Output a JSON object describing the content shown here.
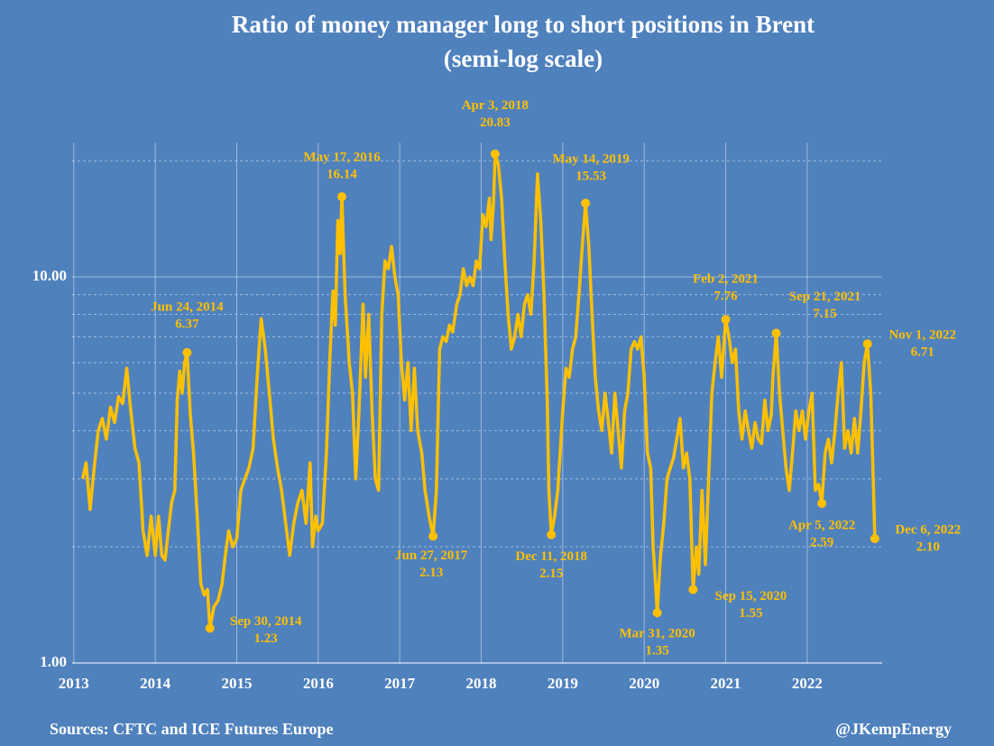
{
  "chart_data": {
    "type": "line",
    "title": "Ratio of money manager long to short positions in Brent",
    "subtitle": "(semi-log scale)",
    "source": "Sources: CFTC and ICE Futures Europe",
    "credit": "@JKempEnergy",
    "log_scale": true,
    "grid": true,
    "color": "#ffc000",
    "xlim": [
      2012.98,
      2022.92
    ],
    "xticks": [
      2013,
      2014,
      2015,
      2016,
      2017,
      2018,
      2019,
      2020,
      2021,
      2022
    ],
    "ylim": [
      1,
      22.3
    ],
    "yticks": [
      {
        "value": 1,
        "label": "1.00"
      },
      {
        "value": 10,
        "label": "10.00"
      }
    ],
    "yminor": [
      2,
      3,
      4,
      5,
      6,
      7,
      8,
      9,
      20
    ],
    "x": [
      2013.11,
      2013.15,
      2013.2,
      2013.25,
      2013.3,
      2013.35,
      2013.4,
      2013.45,
      2013.5,
      2013.55,
      2013.6,
      2013.65,
      2013.7,
      2013.75,
      2013.8,
      2013.85,
      2013.9,
      2013.95,
      2014.0,
      2014.04,
      2014.08,
      2014.12,
      2014.16,
      2014.2,
      2014.24,
      2014.27,
      2014.3,
      2014.33,
      2014.36,
      2014.39,
      2014.43,
      2014.47,
      2014.52,
      2014.56,
      2014.6,
      2014.64,
      2014.67,
      2014.72,
      2014.77,
      2014.82,
      2014.86,
      2014.9,
      2014.95,
      2015.0,
      2015.05,
      2015.1,
      2015.15,
      2015.2,
      2015.25,
      2015.3,
      2015.35,
      2015.4,
      2015.45,
      2015.5,
      2015.55,
      2015.6,
      2015.65,
      2015.7,
      2015.75,
      2015.8,
      2015.85,
      2015.9,
      2015.93,
      2015.97,
      2016.0,
      2016.05,
      2016.1,
      2016.14,
      2016.18,
      2016.21,
      2016.24,
      2016.27,
      2016.29,
      2016.33,
      2016.38,
      2016.42,
      2016.46,
      2016.5,
      2016.55,
      2016.58,
      2016.62,
      2016.66,
      2016.7,
      2016.74,
      2016.78,
      2016.82,
      2016.86,
      2016.9,
      2016.94,
      2016.98,
      2017.02,
      2017.06,
      2017.1,
      2017.14,
      2017.18,
      2017.22,
      2017.27,
      2017.31,
      2017.36,
      2017.41,
      2017.45,
      2017.49,
      2017.53,
      2017.57,
      2017.61,
      2017.65,
      2017.7,
      2017.74,
      2017.78,
      2017.82,
      2017.86,
      2017.9,
      2017.94,
      2017.98,
      2018.02,
      2018.06,
      2018.1,
      2018.12,
      2018.15,
      2018.17,
      2018.21,
      2018.25,
      2018.29,
      2018.33,
      2018.37,
      2018.41,
      2018.45,
      2018.49,
      2018.53,
      2018.57,
      2018.61,
      2018.65,
      2018.69,
      2018.73,
      2018.77,
      2018.81,
      2018.83,
      2018.86,
      2018.9,
      2018.94,
      2019.0,
      2019.04,
      2019.08,
      2019.12,
      2019.16,
      2019.2,
      2019.24,
      2019.28,
      2019.32,
      2019.36,
      2019.4,
      2019.44,
      2019.48,
      2019.52,
      2019.56,
      2019.6,
      2019.64,
      2019.68,
      2019.72,
      2019.76,
      2019.8,
      2019.84,
      2019.88,
      2019.92,
      2019.96,
      2020.0,
      2020.04,
      2020.08,
      2020.11,
      2020.14,
      2020.16,
      2020.2,
      2020.24,
      2020.28,
      2020.32,
      2020.36,
      2020.4,
      2020.44,
      2020.48,
      2020.52,
      2020.56,
      2020.6,
      2020.64,
      2020.67,
      2020.71,
      2020.75,
      2020.79,
      2020.83,
      2020.87,
      2020.91,
      2020.95,
      2021.0,
      2021.04,
      2021.08,
      2021.12,
      2021.16,
      2021.2,
      2021.24,
      2021.28,
      2021.32,
      2021.36,
      2021.4,
      2021.44,
      2021.48,
      2021.52,
      2021.56,
      2021.58,
      2021.62,
      2021.66,
      2021.7,
      2021.74,
      2021.78,
      2021.82,
      2021.86,
      2021.9,
      2021.94,
      2021.98,
      2022.02,
      2022.06,
      2022.1,
      2022.14,
      2022.18,
      2022.22,
      2022.26,
      2022.3,
      2022.34,
      2022.38,
      2022.42,
      2022.46,
      2022.5,
      2022.54,
      2022.58,
      2022.62,
      2022.66,
      2022.7,
      2022.74,
      2022.78,
      2022.81,
      2022.83
    ],
    "values": [
      3.0,
      3.3,
      2.5,
      3.2,
      4.0,
      4.3,
      3.8,
      4.6,
      4.2,
      4.9,
      4.7,
      5.8,
      4.5,
      3.6,
      3.3,
      2.2,
      1.9,
      2.4,
      1.9,
      2.4,
      1.9,
      1.85,
      2.2,
      2.6,
      2.8,
      4.8,
      5.7,
      5.0,
      6.0,
      6.37,
      4.4,
      3.5,
      2.3,
      1.6,
      1.5,
      1.55,
      1.23,
      1.4,
      1.45,
      1.6,
      1.9,
      2.2,
      2.0,
      2.1,
      2.8,
      3.0,
      3.2,
      3.6,
      5.5,
      7.8,
      6.5,
      5.0,
      3.8,
      3.2,
      2.8,
      2.3,
      1.9,
      2.3,
      2.6,
      2.8,
      2.3,
      3.3,
      2.0,
      2.4,
      2.2,
      2.3,
      3.5,
      6.0,
      9.2,
      7.5,
      14.0,
      11.5,
      16.14,
      9.0,
      6.0,
      5.0,
      3.0,
      4.5,
      8.5,
      5.5,
      8.0,
      4.5,
      3.0,
      2.8,
      8.0,
      11.0,
      10.5,
      12.0,
      10.0,
      9.0,
      6.0,
      4.8,
      6.0,
      4.0,
      5.8,
      4.0,
      3.5,
      2.8,
      2.4,
      2.13,
      2.8,
      6.5,
      7.0,
      6.8,
      7.5,
      7.2,
      8.5,
      9.0,
      10.5,
      9.5,
      10.0,
      9.5,
      11.0,
      10.5,
      14.5,
      13.5,
      16.0,
      12.5,
      15.5,
      20.83,
      19.5,
      16.0,
      11.0,
      8.0,
      6.5,
      7.0,
      8.0,
      7.0,
      8.5,
      9.0,
      8.0,
      11.0,
      18.5,
      14.0,
      9.0,
      4.8,
      2.8,
      2.15,
      2.4,
      2.8,
      4.5,
      5.8,
      5.5,
      6.5,
      7.0,
      9.0,
      12.0,
      15.53,
      12.0,
      8.0,
      5.5,
      4.5,
      4.0,
      5.0,
      4.2,
      3.5,
      5.0,
      4.0,
      3.2,
      4.5,
      5.0,
      6.5,
      6.8,
      6.5,
      7.0,
      5.5,
      3.5,
      3.2,
      2.0,
      1.6,
      1.35,
      1.9,
      2.3,
      3.0,
      3.2,
      3.4,
      3.8,
      4.3,
      3.2,
      3.5,
      3.0,
      1.55,
      2.0,
      1.7,
      2.8,
      1.8,
      3.0,
      5.0,
      6.0,
      7.0,
      5.5,
      7.76,
      7.0,
      6.0,
      6.5,
      4.5,
      3.8,
      4.5,
      4.0,
      3.6,
      4.2,
      3.8,
      3.7,
      4.8,
      4.0,
      4.4,
      5.5,
      7.15,
      5.0,
      4.0,
      3.2,
      2.8,
      3.5,
      4.5,
      4.0,
      4.5,
      3.8,
      4.5,
      5.0,
      2.8,
      2.9,
      2.59,
      3.5,
      3.8,
      3.3,
      4.0,
      5.0,
      6.0,
      3.6,
      4.0,
      3.5,
      4.3,
      3.5,
      4.5,
      6.0,
      6.71,
      5.0,
      3.0,
      2.1
    ],
    "annotations": [
      {
        "date": "Jun 24, 2014",
        "x": 2014.39,
        "value": 6.37
      },
      {
        "date": "Sep 30, 2014",
        "x": 2014.67,
        "value": 1.23
      },
      {
        "date": "May 17, 2016",
        "x": 2016.29,
        "value": 16.14
      },
      {
        "date": "Jun 27, 2017",
        "x": 2017.41,
        "value": 2.13
      },
      {
        "date": "Apr 3, 2018",
        "x": 2018.17,
        "value": 20.83
      },
      {
        "date": "Dec 11, 2018",
        "x": 2018.86,
        "value": 2.15
      },
      {
        "date": "May 14, 2019",
        "x": 2019.28,
        "value": 15.53
      },
      {
        "date": "Mar 31, 2020",
        "x": 2020.16,
        "value": 1.35
      },
      {
        "date": "Sep 15, 2020",
        "x": 2020.6,
        "value": 1.55
      },
      {
        "date": "Feb 2, 2021",
        "x": 2021.0,
        "value": 7.76
      },
      {
        "date": "Sep 21, 2021",
        "x": 2021.62,
        "value": 7.15
      },
      {
        "date": "Apr 5, 2022",
        "x": 2022.18,
        "value": 2.59
      },
      {
        "date": "Nov 1, 2022",
        "x": 2022.74,
        "value": 6.71
      },
      {
        "date": "Dec 6, 2022",
        "x": 2022.83,
        "value": 2.1,
        "value_label": "2.10"
      }
    ]
  }
}
